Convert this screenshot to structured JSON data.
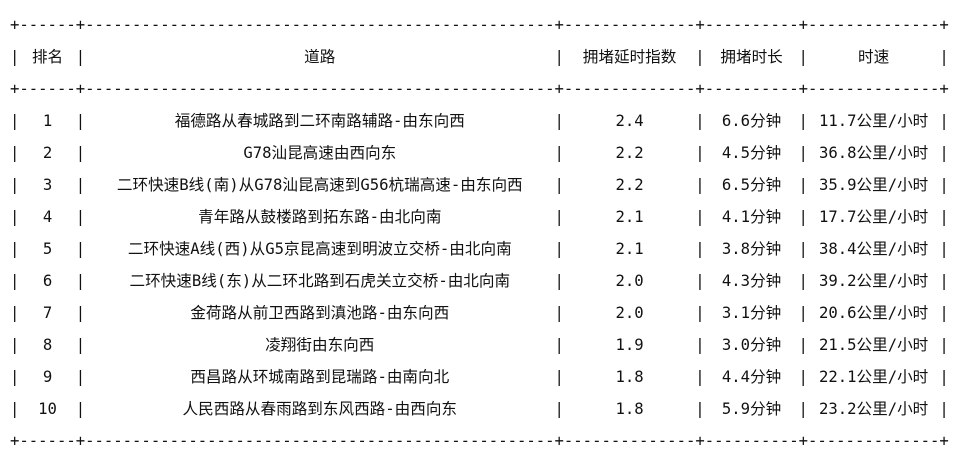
{
  "table": {
    "pipe": "|",
    "border_line": "+------+--------------------------------------------------+--------------+----------+--------------+",
    "headers": {
      "rank": "排名",
      "road": "道路",
      "delay_index": "拥堵延时指数",
      "duration": "拥堵时长",
      "speed": "时速"
    },
    "rows": [
      {
        "rank": "1",
        "road": "福德路从春城路到二环南路辅路-由东向西",
        "delay_index": "2.4",
        "duration": "6.6分钟",
        "speed": "11.7公里/小时"
      },
      {
        "rank": "2",
        "road": "G78汕昆高速由西向东",
        "delay_index": "2.2",
        "duration": "4.5分钟",
        "speed": "36.8公里/小时"
      },
      {
        "rank": "3",
        "road": "二环快速B线(南)从G78汕昆高速到G56杭瑞高速-由东向西",
        "delay_index": "2.2",
        "duration": "6.5分钟",
        "speed": "35.9公里/小时"
      },
      {
        "rank": "4",
        "road": "青年路从鼓楼路到拓东路-由北向南",
        "delay_index": "2.1",
        "duration": "4.1分钟",
        "speed": "17.7公里/小时"
      },
      {
        "rank": "5",
        "road": "二环快速A线(西)从G5京昆高速到明波立交桥-由北向南",
        "delay_index": "2.1",
        "duration": "3.8分钟",
        "speed": "38.4公里/小时"
      },
      {
        "rank": "6",
        "road": "二环快速B线(东)从二环北路到石虎关立交桥-由北向南",
        "delay_index": "2.0",
        "duration": "4.3分钟",
        "speed": "39.2公里/小时"
      },
      {
        "rank": "7",
        "road": "金荷路从前卫西路到滇池路-由东向西",
        "delay_index": "2.0",
        "duration": "3.1分钟",
        "speed": "20.6公里/小时"
      },
      {
        "rank": "8",
        "road": "凌翔街由东向西",
        "delay_index": "1.9",
        "duration": "3.0分钟",
        "speed": "21.5公里/小时"
      },
      {
        "rank": "9",
        "road": "西昌路从环城南路到昆瑞路-由南向北",
        "delay_index": "1.8",
        "duration": "4.4分钟",
        "speed": "22.1公里/小时"
      },
      {
        "rank": "10",
        "road": "人民西路从春雨路到东风西路-由西向东",
        "delay_index": "1.8",
        "duration": "5.9分钟",
        "speed": "23.2公里/小时"
      }
    ]
  }
}
